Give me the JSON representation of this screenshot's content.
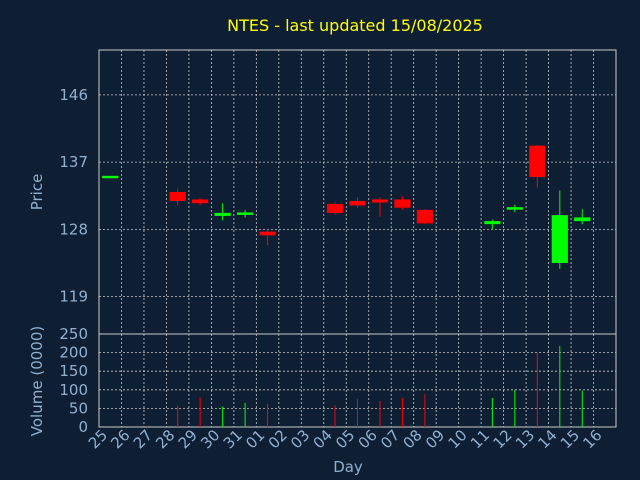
{
  "chart_data": [
    {
      "type": "candlestick",
      "title": "NTES - last updated 15/08/2025",
      "ylabel": "Price",
      "yticks": [
        "119",
        "128",
        "137",
        "146"
      ],
      "ylim": [
        114,
        152
      ],
      "grid": true,
      "colors": {
        "up": "#00ff00",
        "down": "#ff0000"
      },
      "x": [
        "25",
        "26",
        "27",
        "28",
        "29",
        "30",
        "31",
        "01",
        "02",
        "03",
        "04",
        "05",
        "06",
        "07",
        "08",
        "09",
        "10",
        "11",
        "12",
        "13",
        "14",
        "15",
        "16"
      ],
      "candles": [
        {
          "x": "25",
          "open": 135.0,
          "high": 135.0,
          "low": 135.0,
          "close": 135.0
        },
        {
          "x": "28",
          "open": 133.0,
          "high": 133.5,
          "low": 131.2,
          "close": 131.8
        },
        {
          "x": "29",
          "open": 132.0,
          "high": 132.2,
          "low": 131.2,
          "close": 131.5
        },
        {
          "x": "30",
          "open": 129.8,
          "high": 131.5,
          "low": 129.2,
          "close": 130.2
        },
        {
          "x": "31",
          "open": 130.0,
          "high": 130.6,
          "low": 129.6,
          "close": 130.2
        },
        {
          "x": "01",
          "open": 127.7,
          "high": 128.0,
          "low": 125.9,
          "close": 127.2
        },
        {
          "x": "04",
          "open": 131.4,
          "high": 131.6,
          "low": 130.0,
          "close": 130.2
        },
        {
          "x": "05",
          "open": 131.8,
          "high": 132.3,
          "low": 130.9,
          "close": 131.2
        },
        {
          "x": "06",
          "open": 132.0,
          "high": 132.3,
          "low": 129.7,
          "close": 131.6
        },
        {
          "x": "07",
          "open": 132.0,
          "high": 132.4,
          "low": 130.6,
          "close": 130.9
        },
        {
          "x": "08",
          "open": 130.6,
          "high": 130.7,
          "low": 128.7,
          "close": 128.8
        },
        {
          "x": "11",
          "open": 128.7,
          "high": 129.3,
          "low": 128.0,
          "close": 129.1
        },
        {
          "x": "12",
          "open": 130.7,
          "high": 131.3,
          "low": 130.3,
          "close": 130.9
        },
        {
          "x": "13",
          "open": 139.2,
          "high": 139.3,
          "low": 133.6,
          "close": 135.0
        },
        {
          "x": "14",
          "open": 123.5,
          "high": 133.2,
          "low": 122.7,
          "close": 129.9
        },
        {
          "x": "15",
          "open": 129.1,
          "high": 130.7,
          "low": 128.7,
          "close": 129.6
        }
      ]
    },
    {
      "type": "bar",
      "ylabel": "Volume (0000)",
      "xlabel": "Day",
      "yticks": [
        "0",
        "50",
        "100",
        "150",
        "200",
        "250"
      ],
      "ylim": [
        0,
        250
      ],
      "grid": true,
      "x": [
        "25",
        "26",
        "27",
        "28",
        "29",
        "30",
        "31",
        "01",
        "02",
        "03",
        "04",
        "05",
        "06",
        "07",
        "08",
        "09",
        "10",
        "11",
        "12",
        "13",
        "14",
        "15",
        "16"
      ],
      "bars": [
        {
          "x": "28",
          "value": 57,
          "color": "#ff0000"
        },
        {
          "x": "29",
          "value": 80,
          "color": "#ff0000"
        },
        {
          "x": "30",
          "value": 55,
          "color": "#00ff00"
        },
        {
          "x": "31",
          "value": 65,
          "color": "#00ff00"
        },
        {
          "x": "01",
          "value": 62,
          "color": "#ff0000"
        },
        {
          "x": "04",
          "value": 58,
          "color": "#ff0000"
        },
        {
          "x": "05",
          "value": 75,
          "color": "#ff0000"
        },
        {
          "x": "06",
          "value": 70,
          "color": "#ff0000"
        },
        {
          "x": "07",
          "value": 78,
          "color": "#ff0000"
        },
        {
          "x": "08",
          "value": 88,
          "color": "#ff0000"
        },
        {
          "x": "11",
          "value": 78,
          "color": "#00ff00"
        },
        {
          "x": "12",
          "value": 100,
          "color": "#00ff00"
        },
        {
          "x": "13",
          "value": 200,
          "color": "#ff0000"
        },
        {
          "x": "14",
          "value": 218,
          "color": "#00ff00"
        },
        {
          "x": "15",
          "value": 98,
          "color": "#00ff00"
        }
      ]
    }
  ]
}
